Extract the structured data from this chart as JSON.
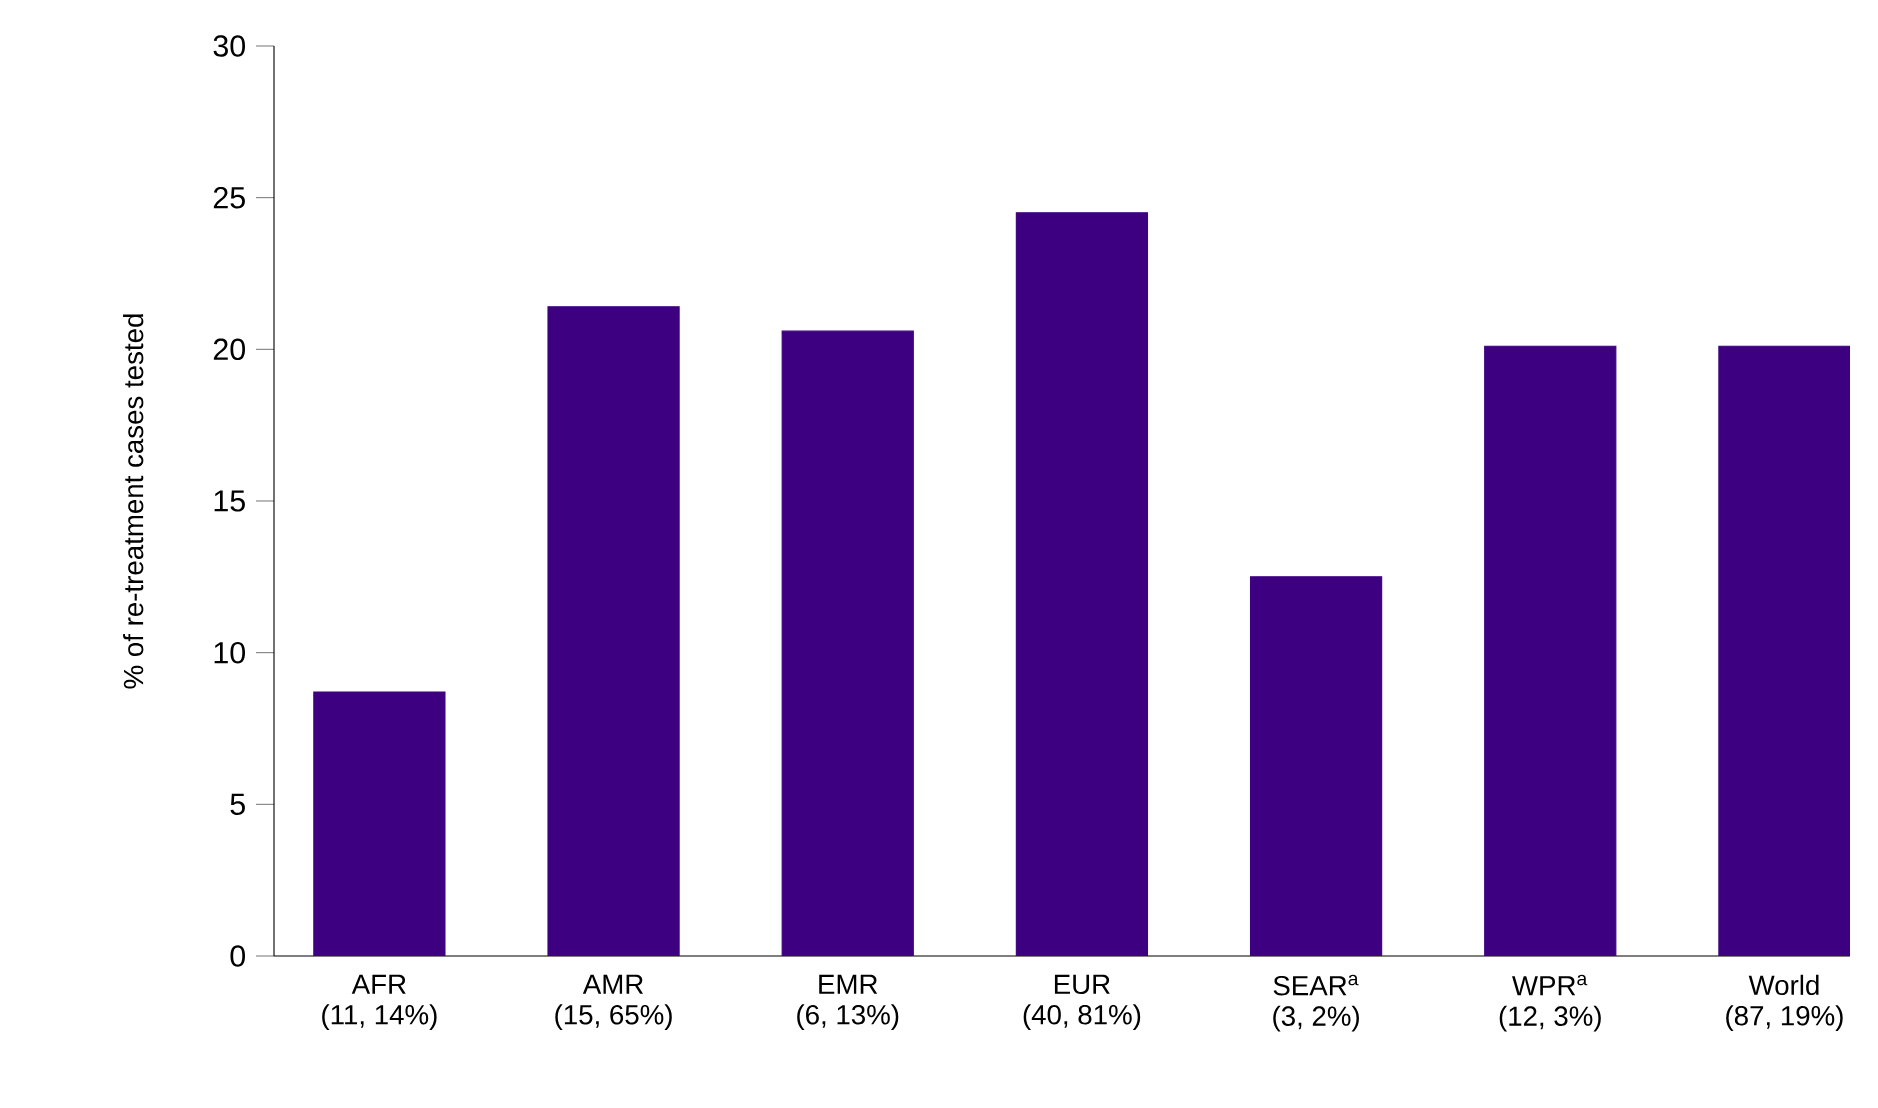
{
  "chart_data": {
    "type": "bar",
    "ylabel": "% of re-treatment cases tested",
    "categories": [
      "AFR\n(11, 14%)",
      "AMR\n(15, 65%)",
      "EMR\n(6, 13%)",
      "EUR\n(40, 81%)",
      "SEAR$^{a}$\n(3, 2%)",
      "WPR$^{a}$\n(12, 3%)",
      "World\n(87, 19%)"
    ],
    "values": [
      8.7,
      21.4,
      20.6,
      24.5,
      12.5,
      20.1,
      20.1
    ],
    "color": "#3d0080",
    "ylim": [
      0,
      30
    ],
    "yticks": [
      0,
      5,
      10,
      15,
      20,
      25,
      30
    ]
  }
}
